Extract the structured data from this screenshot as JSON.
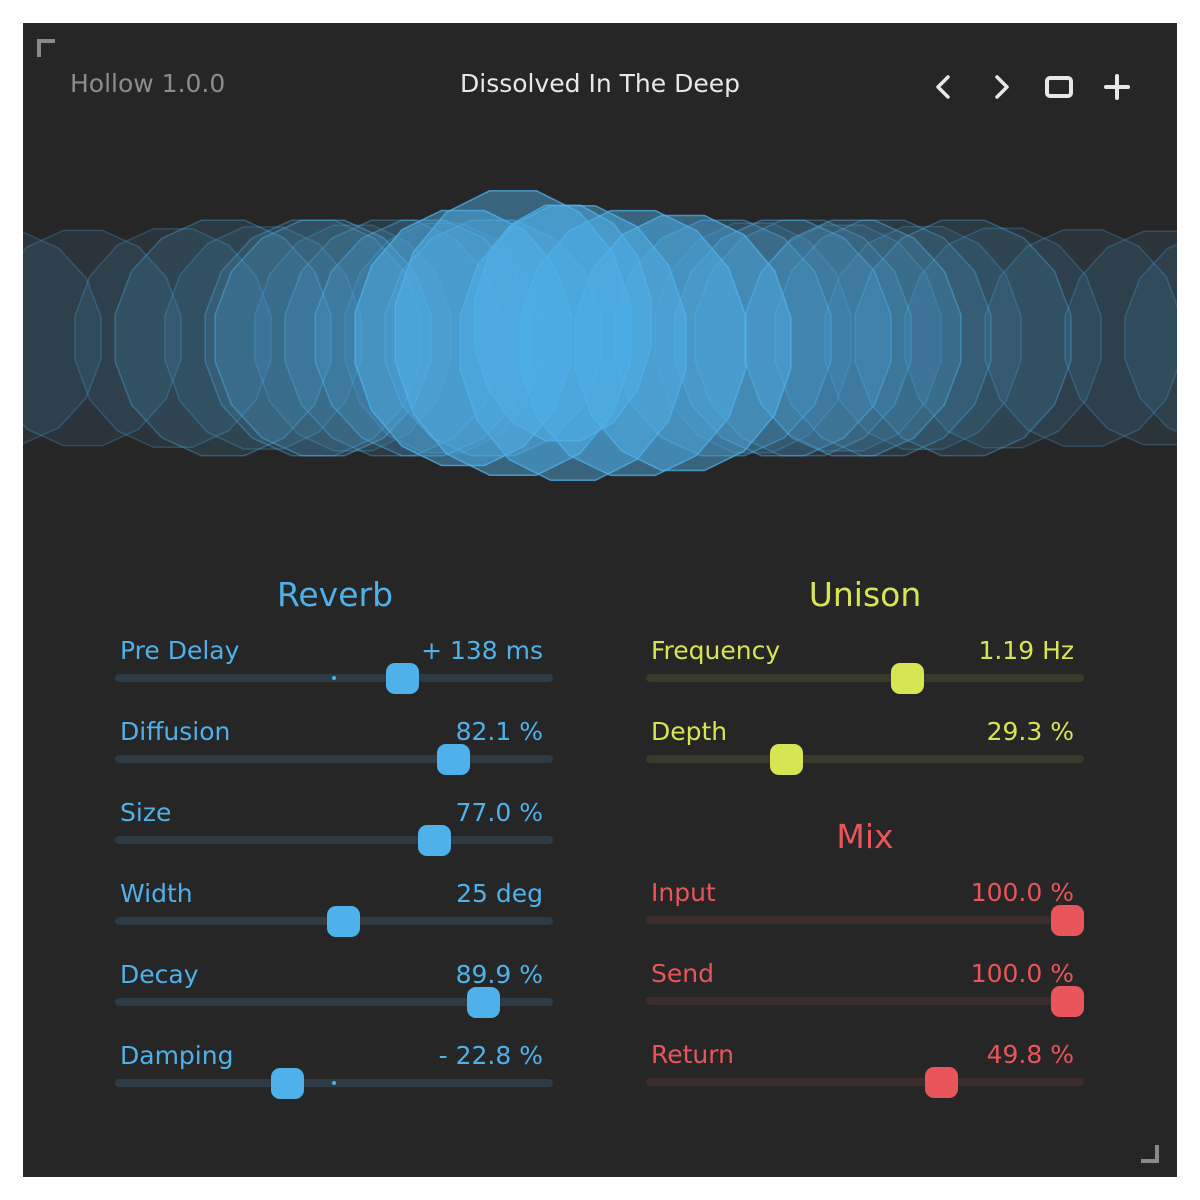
{
  "header": {
    "app_version": "Hollow 1.0.0",
    "preset_name": "Dissolved In The Deep",
    "icons": [
      "chevron-left-icon",
      "chevron-right-icon",
      "square-icon",
      "plus-icon"
    ]
  },
  "colors": {
    "background": "#262626",
    "reverb": "#4fb1ea",
    "unison": "#d7e553",
    "mix": "#e8555a"
  },
  "reverb": {
    "title": "Reverb",
    "params": [
      {
        "label": "Pre Delay",
        "value": "+ 138 ms",
        "fraction": 0.67,
        "bipolar": true
      },
      {
        "label": "Diffusion",
        "value": "82.1 %",
        "fraction": 0.796
      },
      {
        "label": "Size",
        "value": "77.0 %",
        "fraction": 0.748
      },
      {
        "label": "Width",
        "value": "25 deg",
        "fraction": 0.523
      },
      {
        "label": "Decay",
        "value": "89.9 %",
        "fraction": 0.869
      },
      {
        "label": "Damping",
        "value": "- 22.8 %",
        "fraction": 0.386,
        "bipolar": true
      }
    ]
  },
  "unison": {
    "title": "Unison",
    "params": [
      {
        "label": "Frequency",
        "value": "1.19 Hz",
        "fraction": 0.604
      },
      {
        "label": "Depth",
        "value": "29.3 %",
        "fraction": 0.307
      }
    ]
  },
  "mix": {
    "title": "Mix",
    "params": [
      {
        "label": "Input",
        "value": "100.0 %",
        "fraction": 1.0
      },
      {
        "label": "Send",
        "value": "100.0 %",
        "fraction": 1.0
      },
      {
        "label": "Return",
        "value": "49.8 %",
        "fraction": 0.688
      }
    ]
  }
}
